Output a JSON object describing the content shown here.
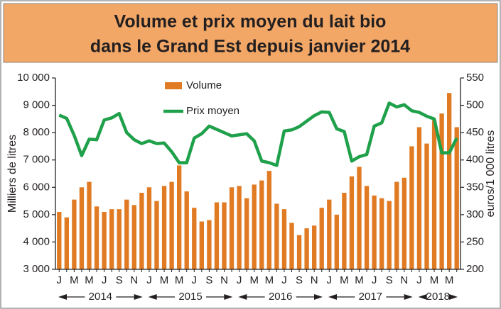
{
  "chart_data": {
    "type": "bar_line",
    "title": "Volume et prix moyen du lait bio dans le Grand Est depuis janvier 2014",
    "title_lines": [
      "Volume et prix moyen du lait bio",
      "dans le Grand Est depuis janvier 2014"
    ],
    "y_label": "Milliers de litres",
    "y2_label": "euros/1 000 litres",
    "categories": [
      "J",
      null,
      "M",
      null,
      "M",
      null,
      "J",
      null,
      "S",
      null,
      "N",
      null,
      "J",
      null,
      "M",
      null,
      "M",
      null,
      "J",
      null,
      "S",
      null,
      "N",
      null,
      "J",
      null,
      "M",
      null,
      "M",
      null,
      "J",
      null,
      "S",
      null,
      "N",
      null,
      "J",
      null,
      "M",
      null,
      "M",
      null,
      "J",
      null,
      "S",
      null,
      "N",
      null,
      "J",
      null,
      "M",
      null,
      "M",
      null
    ],
    "years": [
      "2014",
      "2015",
      "2016",
      "2017",
      "2018"
    ],
    "series": [
      {
        "name": "Volume",
        "color": "#e07b24",
        "axis": "y",
        "values": [
          5100,
          4900,
          5550,
          6000,
          6200,
          5300,
          5100,
          5200,
          5200,
          5550,
          5350,
          5800,
          6000,
          5500,
          6050,
          6200,
          6800,
          5850,
          5250,
          4750,
          4800,
          5450,
          5450,
          6000,
          6050,
          5600,
          6100,
          6250,
          6600,
          5400,
          5200,
          4700,
          4250,
          4500,
          4600,
          5250,
          5550,
          5000,
          5800,
          6400,
          6750,
          6050,
          5700,
          5600,
          5500,
          6200,
          6350,
          7500,
          8200,
          7600,
          8450,
          8700,
          9450,
          8200
        ]
      },
      {
        "name": "Prix moyen",
        "color": "#1fa04a",
        "axis": "y2",
        "values": [
          482,
          476,
          445,
          408,
          438,
          437,
          473,
          477,
          485,
          450,
          437,
          430,
          435,
          430,
          431,
          415,
          395,
          395,
          440,
          448,
          462,
          456,
          450,
          444,
          446,
          448,
          435,
          398,
          395,
          390,
          453,
          455,
          461,
          471,
          481,
          488,
          487,
          457,
          452,
          398,
          406,
          410,
          462,
          468,
          504,
          497,
          501,
          490,
          487,
          480,
          475,
          413,
          413,
          440
        ]
      }
    ],
    "ylim": [
      3000,
      10000
    ],
    "yticks": [
      {
        "value": 3000,
        "label": "3 000"
      },
      {
        "value": 4000,
        "label": "4 000"
      },
      {
        "value": 5000,
        "label": "5 000"
      },
      {
        "value": 6000,
        "label": "6 000"
      },
      {
        "value": 7000,
        "label": "7 000"
      },
      {
        "value": 8000,
        "label": "8 000"
      },
      {
        "value": 9000,
        "label": "9 000"
      },
      {
        "value": 10000,
        "label": "10 000"
      }
    ],
    "y2lim": [
      200,
      550
    ],
    "y2ticks": [
      200,
      250,
      300,
      350,
      400,
      450,
      500,
      550
    ]
  }
}
